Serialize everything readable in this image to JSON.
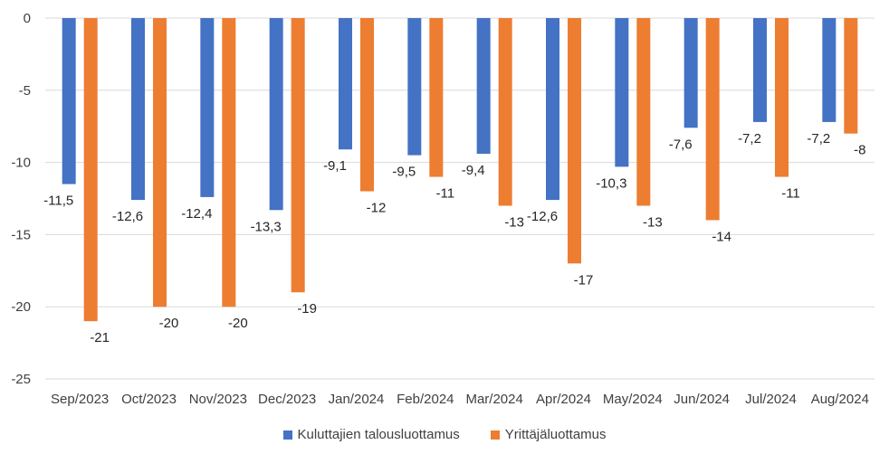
{
  "chart_data": {
    "type": "bar",
    "categories": [
      "Sep/2023",
      "Oct/2023",
      "Nov/2023",
      "Dec/2023",
      "Jan/2024",
      "Feb/2024",
      "Mar/2024",
      "Apr/2024",
      "May/2024",
      "Jun/2024",
      "Jul/2024",
      "Aug/2024"
    ],
    "series": [
      {
        "name": "Kuluttajien talousluottamus",
        "color": "#4472C4",
        "values": [
          -11.5,
          -12.6,
          -12.4,
          -13.3,
          -9.1,
          -9.5,
          -9.4,
          -12.6,
          -10.3,
          -7.6,
          -7.2,
          -7.2
        ],
        "labels": [
          "-11,5",
          "-12,6",
          "-12,4",
          "-13,3",
          "-9,1",
          "-9,5",
          "-9,4",
          "-12,6",
          "-10,3",
          "-7,6",
          "-7,2",
          "-7,2"
        ]
      },
      {
        "name": "Yrittäjäluottamus",
        "color": "#ED7D31",
        "values": [
          -21,
          -20,
          -20,
          -19,
          -12,
          -11,
          -13,
          -17,
          -13,
          -14,
          -11,
          -8
        ],
        "labels": [
          "-21",
          "-20",
          "-20",
          "-19",
          "-12",
          "-11",
          "-13",
          "-17",
          "-13",
          "-14",
          "-11",
          "-8"
        ]
      }
    ],
    "yticks": [
      0,
      -5,
      -10,
      -15,
      -20,
      -25
    ],
    "ytick_labels": [
      "0",
      "-5",
      "-10",
      "-15",
      "-20",
      "-25"
    ],
    "ylim": [
      -25,
      0
    ],
    "grid": true,
    "legend_position": "bottom"
  }
}
